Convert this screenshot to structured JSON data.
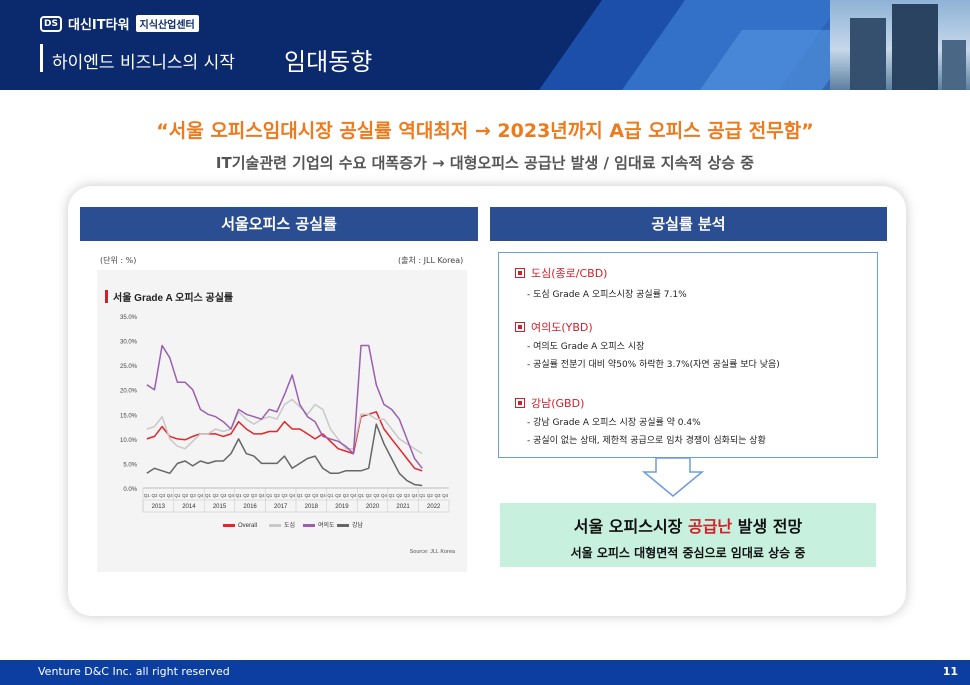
{
  "header": {
    "logo_mark": "DS",
    "logo_text": "대신IT타워",
    "logo_tag": "지식산업센터",
    "subtitle": "하이엔드 비즈니스의 시작",
    "title": "임대동향"
  },
  "headline": "“서울 오피스임대시장 공실률 역대최저 → 2023년까지 A급 오피스 공급 전무함”",
  "subline": "IT기술관련 기업의 수요 대폭증가 → 대형오피스 공급난 발생 / 임대료 지속적 상승 중",
  "left_title": "서울오피스 공실률",
  "right_title": "공실률 분석",
  "chart_unit": "(단위 : %)",
  "chart_source_top": "(출처 : JLL Korea)",
  "analysis": {
    "sections": [
      {
        "title": "도심(종로/CBD)",
        "lines": [
          "- 도심 Grade A 오피스시장 공실률 7.1%"
        ]
      },
      {
        "title": "여의도(YBD)",
        "lines": [
          "- 여의도 Grade A 오피스 시장",
          "- 공실률 전분기 대비 약50% 하락한 3.7%(자연 공실률 보다 낮음)"
        ]
      },
      {
        "title": "강남(GBD)",
        "lines": [
          "- 강남 Grade A 오피스 시장 공실률 약 0.4%",
          "- 공실이 없는 상태, 제한적 공급으로 임차 경쟁이 심화되는 상황"
        ]
      }
    ]
  },
  "forecast": {
    "line1_a": "서울 오피스시장 ",
    "line1_highlight": "공급난",
    "line1_b": " 발생 전망",
    "line2": "서울 오피스 대형면적 중심으로 임대료 상승 중"
  },
  "footer": {
    "copyright": "Venture D&C Inc. all right reserved",
    "page": "11"
  },
  "colors": {
    "header": "#0b2a6e",
    "accent_orange": "#ee7a1c",
    "title_bar": "#2b4d91",
    "red": "#d21f2b",
    "footer": "#0b3ea0"
  },
  "chart_data": {
    "type": "line",
    "title": "서울 Grade A 오피스 공실률",
    "source": "Source: JLL Korea",
    "ylim": [
      0,
      35
    ],
    "y_ticks": [
      "0.0%",
      "5.0%",
      "10.0%",
      "15.0%",
      "20.0%",
      "25.0%",
      "30.0%",
      "35.0%"
    ],
    "quarter_labels": [
      "Q1",
      "Q2",
      "Q3",
      "Q4"
    ],
    "years": [
      "2013",
      "2014",
      "2015",
      "2016",
      "2017",
      "2018",
      "2019",
      "2020",
      "2021",
      "2022"
    ],
    "legend_position": "bottom",
    "series": [
      {
        "name": "Overall",
        "color": "#e3262c",
        "values": [
          10,
          10.5,
          12.5,
          10.5,
          10,
          9.8,
          10.5,
          11,
          11,
          11,
          10.5,
          11,
          13.5,
          12,
          11,
          11,
          11.5,
          11.5,
          13.5,
          12,
          12,
          11,
          10,
          11,
          9.5,
          8,
          7.5,
          7,
          14.5,
          15,
          15.5,
          12,
          10,
          8,
          6,
          4,
          3.5
        ]
      },
      {
        "name": "도심",
        "color": "#c8c8c8",
        "values": [
          12,
          12.5,
          14.5,
          10,
          8.5,
          8,
          9.5,
          11,
          11,
          12,
          11.5,
          12,
          15.5,
          14,
          13,
          14,
          14.5,
          14,
          17,
          18,
          16.5,
          15,
          17,
          16,
          12,
          10,
          8,
          8,
          15,
          15,
          14,
          14,
          12,
          10,
          9,
          8,
          7
        ]
      },
      {
        "name": "여의도",
        "color": "#9b5fb0",
        "values": [
          21,
          20,
          29,
          26.5,
          21.5,
          21.5,
          20,
          16,
          15,
          14.5,
          13.5,
          12,
          16,
          15,
          14.5,
          14,
          16,
          15.5,
          19,
          23,
          17,
          14.5,
          13.5,
          10.5,
          10,
          9.5,
          8.5,
          7,
          29,
          29,
          21,
          17,
          16,
          14,
          10,
          6,
          4
        ]
      },
      {
        "name": "강남",
        "color": "#666666",
        "values": [
          3,
          4,
          3.5,
          3,
          5,
          5.5,
          4.5,
          5.5,
          5,
          5.5,
          5.5,
          7,
          10,
          7,
          6.5,
          5,
          5,
          5,
          6.5,
          4,
          5,
          6,
          6.5,
          4,
          3,
          3,
          3.5,
          3.5,
          3.5,
          4,
          13,
          9,
          6,
          3,
          1.5,
          0.7,
          0.5
        ]
      }
    ]
  }
}
